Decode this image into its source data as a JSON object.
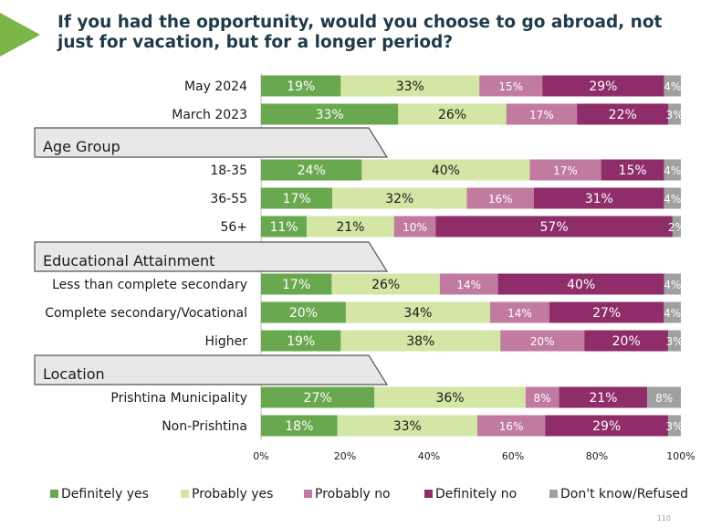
{
  "title": "If you had the opportunity, would you choose to go abroad, not just for vacation, but for a longer period?",
  "page_number": "110",
  "colors": {
    "definitely_yes": "#6aa84f",
    "probably_yes": "#d4e6a5",
    "probably_no": "#c27ba0",
    "definitely_no": "#8e2d6a",
    "dont_know": "#a0a0a0",
    "section_bg": "#e8e8e8"
  },
  "chart_data": {
    "type": "bar",
    "orientation": "horizontal",
    "stacked": true,
    "xlim": [
      0,
      100
    ],
    "x_ticks": [
      "0%",
      "20%",
      "40%",
      "60%",
      "80%",
      "100%"
    ],
    "legend_position": "bottom",
    "series": [
      {
        "name": "Definitely yes",
        "color": "#6aa84f"
      },
      {
        "name": "Probably yes",
        "color": "#d4e6a5"
      },
      {
        "name": "Probably no",
        "color": "#c27ba0"
      },
      {
        "name": "Definitely no",
        "color": "#8e2d6a"
      },
      {
        "name": "Don't know/Refused",
        "color": "#a0a0a0"
      }
    ],
    "rows": [
      {
        "kind": "bar",
        "label": "May 2024",
        "values": [
          19,
          33,
          15,
          29,
          4
        ]
      },
      {
        "kind": "bar",
        "label": "March 2023",
        "values": [
          33,
          26,
          17,
          22,
          3
        ]
      },
      {
        "kind": "section",
        "label": "Age Group"
      },
      {
        "kind": "bar",
        "label": "18-35",
        "values": [
          24,
          40,
          17,
          15,
          4
        ]
      },
      {
        "kind": "bar",
        "label": "36-55",
        "values": [
          17,
          32,
          16,
          31,
          4
        ]
      },
      {
        "kind": "bar",
        "label": "56+",
        "values": [
          11,
          21,
          10,
          57,
          2
        ]
      },
      {
        "kind": "section",
        "label": "Educational Attainment"
      },
      {
        "kind": "bar",
        "label": "Less than complete secondary",
        "values": [
          17,
          26,
          14,
          40,
          4
        ]
      },
      {
        "kind": "bar",
        "label": "Complete secondary/Vocational",
        "values": [
          20,
          34,
          14,
          27,
          4
        ]
      },
      {
        "kind": "bar",
        "label": "Higher",
        "values": [
          19,
          38,
          20,
          20,
          3
        ]
      },
      {
        "kind": "section",
        "label": "Location"
      },
      {
        "kind": "bar",
        "label": "Prishtina Municipality",
        "values": [
          27,
          36,
          8,
          21,
          8
        ]
      },
      {
        "kind": "bar",
        "label": "Non-Prishtina",
        "values": [
          18,
          33,
          16,
          29,
          3
        ]
      }
    ]
  }
}
